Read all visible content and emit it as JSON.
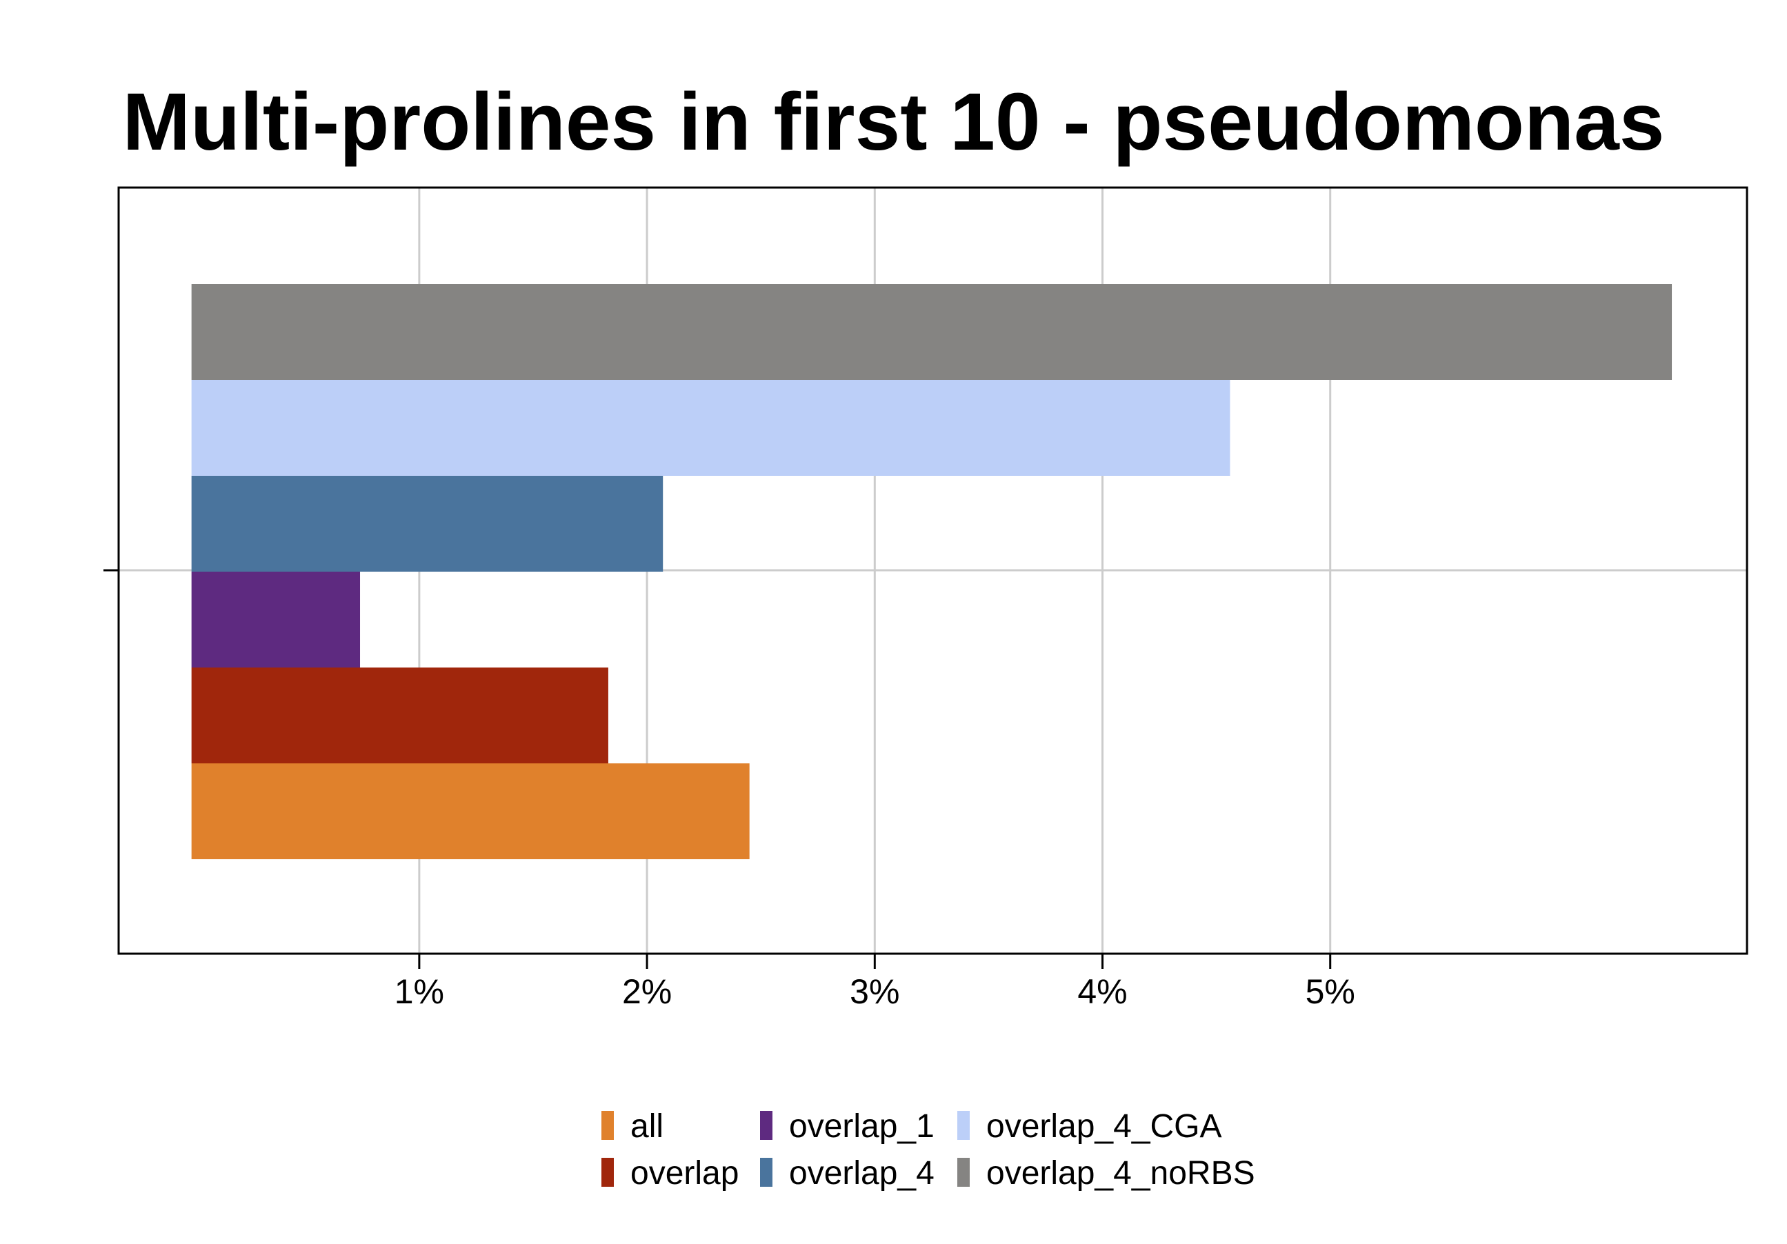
{
  "chart_data": {
    "type": "bar",
    "orientation": "horizontal",
    "title": "Multi-prolines in first 10 - pseudomonas",
    "xlabel": "",
    "ylabel": "",
    "xlim": [
      -0.32,
      6.83
    ],
    "x_ticks": [
      1,
      2,
      3,
      4,
      5
    ],
    "x_tick_labels": [
      "1%",
      "2%",
      "3%",
      "4%",
      "5%"
    ],
    "grid": true,
    "legend_position": "bottom",
    "series": [
      {
        "name": "all",
        "value": 2.45,
        "color": "#E0812C"
      },
      {
        "name": "overlap",
        "value": 1.83,
        "color": "#A0260C"
      },
      {
        "name": "overlap_1",
        "value": 0.74,
        "color": "#5E2A80"
      },
      {
        "name": "overlap_4",
        "value": 2.07,
        "color": "#4A749D"
      },
      {
        "name": "overlap_4_CGA",
        "value": 4.56,
        "color": "#BCCFF8"
      },
      {
        "name": "overlap_4_noRBS",
        "value": 6.5,
        "color": "#858482"
      }
    ]
  }
}
